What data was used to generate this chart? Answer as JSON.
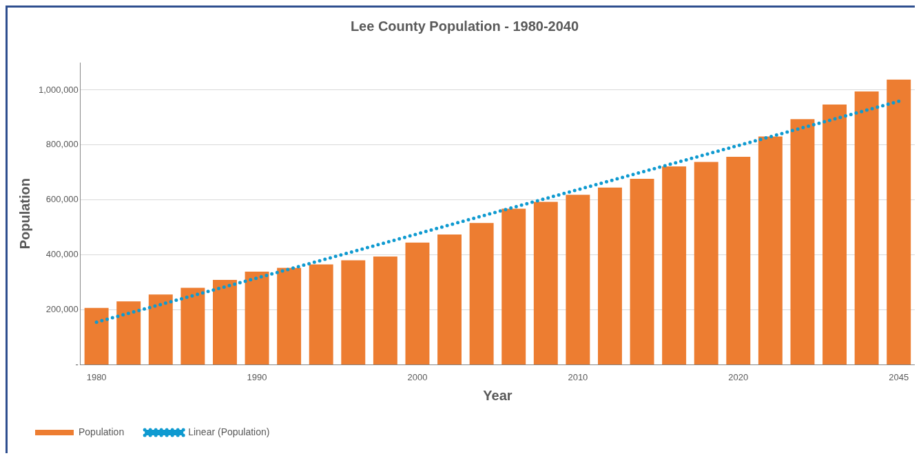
{
  "chart_data": {
    "type": "bar",
    "title": "Lee County Population - 1980-2040",
    "xlabel": "Year",
    "ylabel": "Population",
    "categories": [
      "1980",
      null,
      null,
      null,
      null,
      "1990",
      null,
      null,
      null,
      null,
      "2000",
      null,
      null,
      null,
      null,
      "2010",
      null,
      null,
      null,
      null,
      "2020",
      null,
      null,
      null,
      null,
      "2045"
    ],
    "series": [
      {
        "name": "Population",
        "color": "#ed7d31",
        "values": [
          207000,
          231000,
          256000,
          280000,
          309000,
          339000,
          353000,
          365000,
          380000,
          394000,
          445000,
          474000,
          516000,
          568000,
          593000,
          619000,
          645000,
          677000,
          722000,
          738000,
          757000,
          831000,
          894000,
          947000,
          995000,
          1038000
        ]
      },
      {
        "name": "Linear (Population)",
        "type": "line",
        "color": "#0f9ad0",
        "line_style": "dotted",
        "values": [
          155000,
          null,
          null,
          null,
          null,
          null,
          null,
          null,
          null,
          null,
          null,
          null,
          null,
          null,
          null,
          null,
          null,
          null,
          null,
          null,
          null,
          null,
          null,
          null,
          null,
          959000
        ]
      }
    ],
    "ylim": [
      0,
      1100000
    ],
    "yticks": [
      {
        "value": 0,
        "label": "-"
      },
      {
        "value": 200000,
        "label": "200,000"
      },
      {
        "value": 400000,
        "label": "400,000"
      },
      {
        "value": 600000,
        "label": "600,000"
      },
      {
        "value": 800000,
        "label": "800,000"
      },
      {
        "value": 1000000,
        "label": "1,000,000"
      }
    ],
    "grid": "y",
    "legend": "bottom left"
  }
}
